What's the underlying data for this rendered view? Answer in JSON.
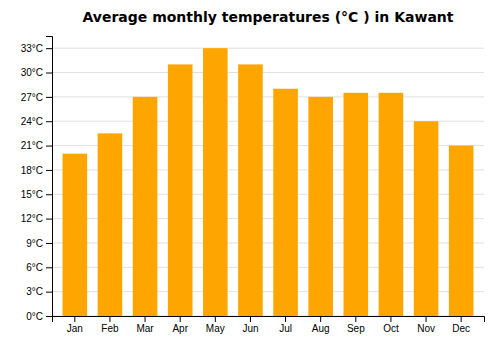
{
  "chart_data": {
    "type": "bar",
    "title": "Average monthly temperatures (°C ) in Kawant",
    "categories": [
      "Jan",
      "Feb",
      "Mar",
      "Apr",
      "May",
      "Jun",
      "Jul",
      "Aug",
      "Sep",
      "Oct",
      "Nov",
      "Dec"
    ],
    "values": [
      20,
      22.5,
      27,
      31,
      33,
      31,
      28,
      27,
      27.5,
      27.5,
      24,
      21
    ],
    "color": "#FFA500",
    "ylim": [
      0,
      34.5
    ],
    "yticks": [
      {
        "value": 0,
        "label": "0°C"
      },
      {
        "value": 3,
        "label": "3°C"
      },
      {
        "value": 6,
        "label": "6°C"
      },
      {
        "value": 9,
        "label": "9°C"
      },
      {
        "value": 12,
        "label": "12°C"
      },
      {
        "value": 15,
        "label": "15°C"
      },
      {
        "value": 18,
        "label": "18°C"
      },
      {
        "value": 21,
        "label": "21°C"
      },
      {
        "value": 24,
        "label": "24°C"
      },
      {
        "value": 27,
        "label": "27°C"
      },
      {
        "value": 30,
        "label": "30°C"
      },
      {
        "value": 33,
        "label": "33°C"
      }
    ],
    "grid": true
  }
}
